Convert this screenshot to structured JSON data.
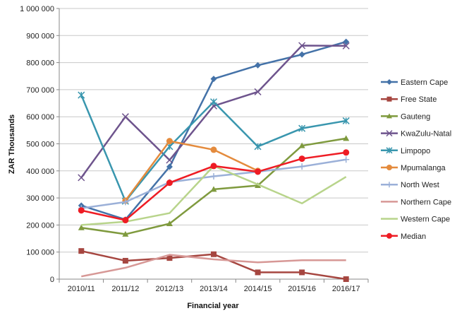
{
  "chart_data": {
    "type": "line",
    "title": "",
    "xlabel": "Financial year",
    "ylabel": "ZAR Thousands",
    "categories": [
      "2010/11",
      "2011/12",
      "2012/13",
      "2013/14",
      "2014/15",
      "2015/16",
      "2016/17"
    ],
    "ylim": [
      0,
      1000000
    ],
    "yticks": [
      0,
      100000,
      200000,
      300000,
      400000,
      500000,
      600000,
      700000,
      800000,
      900000,
      1000000
    ],
    "ytick_labels": [
      "0",
      "100 000",
      "200 000",
      "300 000",
      "400 000",
      "500 000",
      "600 000",
      "700 000",
      "800 000",
      "900 000",
      "1 000 000"
    ],
    "grid": true,
    "legend_position": "right",
    "series": [
      {
        "name": "Eastern Cape",
        "color": "#4472a8",
        "marker": "diamond",
        "values": [
          272000,
          220000,
          415000,
          740000,
          790000,
          830000,
          877000
        ]
      },
      {
        "name": "Free State",
        "color": "#a64640",
        "marker": "square",
        "values": [
          104000,
          68000,
          78000,
          92000,
          25000,
          25000,
          0
        ]
      },
      {
        "name": "Gauteng",
        "color": "#7f9a3e",
        "marker": "triangle",
        "values": [
          190000,
          166000,
          205000,
          332000,
          346000,
          493000,
          520000
        ]
      },
      {
        "name": "KwaZulu-Natal",
        "color": "#6e548d",
        "marker": "x",
        "values": [
          375000,
          600000,
          440000,
          640000,
          692000,
          863000,
          862000
        ]
      },
      {
        "name": "Limpopo",
        "color": "#3996ae",
        "marker": "asterisk",
        "values": [
          680000,
          288000,
          490000,
          655000,
          490000,
          557000,
          585000
        ]
      },
      {
        "name": "Mpumalanga",
        "color": "#e48b3d",
        "marker": "circle",
        "values": [
          null,
          290000,
          510000,
          478000,
          400000,
          null,
          null
        ]
      },
      {
        "name": "North West",
        "color": "#9bb0d8",
        "marker": "plus",
        "values": [
          262000,
          285000,
          358000,
          380000,
          397000,
          416000,
          442000
        ]
      },
      {
        "name": "Northern Cape",
        "color": "#d79896",
        "marker": "none",
        "values": [
          10000,
          42000,
          90000,
          73000,
          62000,
          70000,
          70000
        ]
      },
      {
        "name": "Western Cape",
        "color": "#b8d48b",
        "marker": "none",
        "values": [
          200000,
          212000,
          244000,
          418000,
          350000,
          280000,
          378000
        ]
      },
      {
        "name": "Median",
        "color": "#ee1c24",
        "marker": "circle",
        "values": [
          254000,
          218000,
          356000,
          418000,
          397000,
          445000,
          468000
        ]
      }
    ]
  }
}
